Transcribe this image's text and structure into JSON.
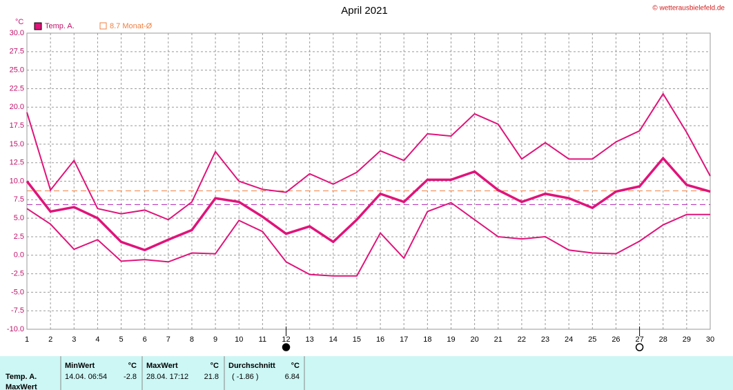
{
  "chart_data": {
    "type": "line",
    "title": "April 2021",
    "y_label": "°C",
    "source": "© wetterausbielefeld.de",
    "x": [
      1,
      2,
      3,
      4,
      5,
      6,
      7,
      8,
      9,
      10,
      11,
      12,
      13,
      14,
      15,
      16,
      17,
      18,
      19,
      20,
      21,
      22,
      23,
      24,
      25,
      26,
      27,
      28,
      29,
      30
    ],
    "xlim": [
      1,
      30
    ],
    "xticks": [
      1,
      2,
      3,
      4,
      5,
      6,
      7,
      8,
      9,
      10,
      11,
      12,
      13,
      14,
      15,
      16,
      17,
      18,
      19,
      20,
      21,
      22,
      23,
      24,
      25,
      26,
      27,
      28,
      29,
      30
    ],
    "series": [
      {
        "name": "Temp. A.",
        "color": "#e0137a",
        "values": [
          10.0,
          5.9,
          6.5,
          5.0,
          1.8,
          0.7,
          2.1,
          3.4,
          7.7,
          7.2,
          5.2,
          2.9,
          3.9,
          1.8,
          4.8,
          8.3,
          7.2,
          10.2,
          10.2,
          11.3,
          8.8,
          7.2,
          8.3,
          7.7,
          6.4,
          8.6,
          9.3,
          13.1,
          9.5,
          8.6
        ],
        "max": [
          19.3,
          8.8,
          12.8,
          6.3,
          5.6,
          6.1,
          4.8,
          7.2,
          14.0,
          10.0,
          8.9,
          8.5,
          11.0,
          9.6,
          11.2,
          14.1,
          12.8,
          16.4,
          16.1,
          19.1,
          17.7,
          13.0,
          15.2,
          13.0,
          13.0,
          15.3,
          16.8,
          21.8,
          16.6,
          10.7
        ],
        "min": [
          6.3,
          4.2,
          0.8,
          2.1,
          -0.8,
          -0.6,
          -0.9,
          0.3,
          0.2,
          4.7,
          3.2,
          -0.9,
          -2.6,
          -2.8,
          -2.8,
          3.0,
          -0.4,
          5.9,
          7.1,
          4.8,
          2.5,
          2.2,
          2.5,
          0.7,
          0.3,
          0.2,
          1.9,
          4.1,
          5.5,
          5.5
        ]
      }
    ],
    "reference_lines": [
      {
        "label": "8.7 Monat-Ø",
        "value": 8.7,
        "color": "#f08040"
      },
      {
        "value": 6.84,
        "color": "#b020b0"
      }
    ],
    "markers": [
      {
        "x": 12,
        "shape": "filled"
      },
      {
        "x": 27,
        "shape": "open"
      }
    ],
    "ylim": [
      -10,
      30
    ],
    "yticks": [
      {
        "value": -10,
        "label": "-10.0"
      },
      {
        "value": -7.5,
        "label": "-7.5"
      },
      {
        "value": -5,
        "label": "-5.0"
      },
      {
        "value": -2.5,
        "label": "-2.5"
      },
      {
        "value": 0,
        "label": "0.0"
      },
      {
        "value": 2.5,
        "label": "2.5"
      },
      {
        "value": 5,
        "label": "5.0"
      },
      {
        "value": 7.5,
        "label": "7.5"
      },
      {
        "value": 10,
        "label": "10.0"
      },
      {
        "value": 12.5,
        "label": "12.5"
      },
      {
        "value": 15,
        "label": "15.0"
      },
      {
        "value": 17.5,
        "label": "17.5"
      },
      {
        "value": 20,
        "label": "20.0"
      },
      {
        "value": 22.5,
        "label": "22.5"
      },
      {
        "value": 25,
        "label": "25.0"
      },
      {
        "value": 27.5,
        "label": "27.5"
      },
      {
        "value": 30,
        "label": "30.0"
      }
    ],
    "grid": true
  },
  "table": {
    "row_labels": [
      "Temp. A.",
      "MaxWert"
    ],
    "headers": [
      "MinWert",
      "°C",
      "MaxWert",
      "°C",
      "Durchschnitt",
      "°C"
    ],
    "rows": [
      [
        "14.04.  06:54",
        "-2.8",
        "28.04.  17:12",
        "21.8",
        "( -1.86 )",
        "6.84"
      ]
    ]
  }
}
